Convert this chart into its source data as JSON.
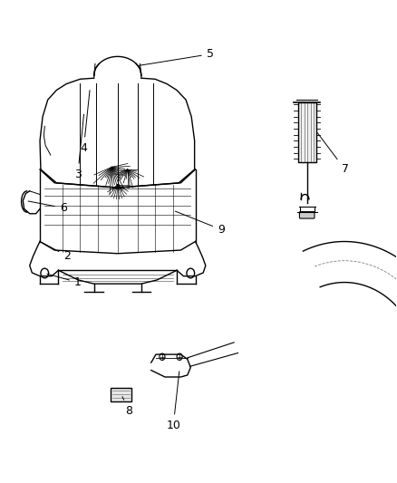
{
  "bg_color": "#ffffff",
  "line_color": "#000000",
  "fig_width": 4.38,
  "fig_height": 5.33,
  "dpi": 100,
  "label_fontsize": 9
}
